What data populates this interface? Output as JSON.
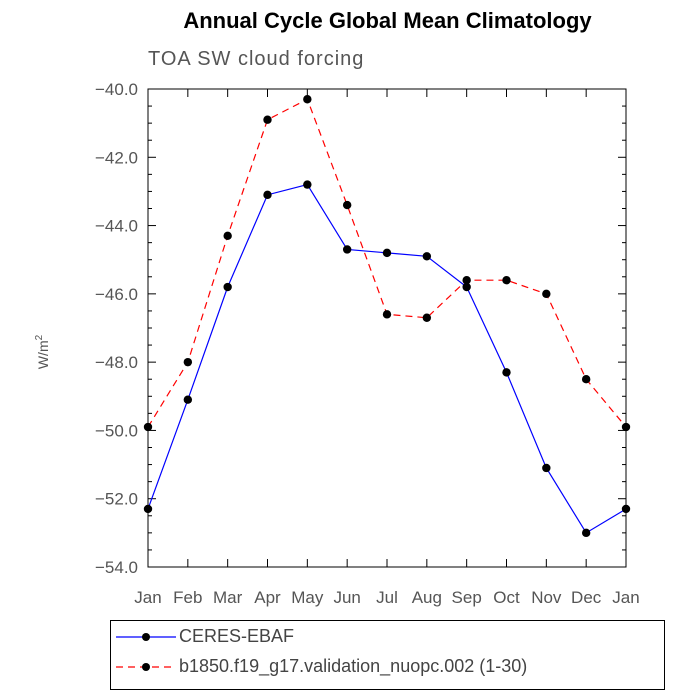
{
  "chart_data": {
    "type": "line",
    "title": "Annual Cycle Global Mean Climatology",
    "subtitle": "TOA SW cloud forcing",
    "ylabel": "W/m²",
    "ylabel_main": "W/m",
    "ylabel_sup": "2",
    "xlabel": "",
    "categories": [
      "Jan",
      "Feb",
      "Mar",
      "Apr",
      "May",
      "Jun",
      "Jul",
      "Aug",
      "Sep",
      "Oct",
      "Nov",
      "Dec",
      "Jan"
    ],
    "ylim": [
      -54.0,
      -40.0
    ],
    "yticks": [
      -54.0,
      -52.0,
      -50.0,
      -48.0,
      -46.0,
      -44.0,
      -42.0,
      -40.0
    ],
    "ytick_labels": [
      "−54.0",
      "−52.0",
      "−50.0",
      "−48.0",
      "−46.0",
      "−44.0",
      "−42.0",
      "−40.0"
    ],
    "series": [
      {
        "name": "CERES-EBAF",
        "color": "#0000ff",
        "dash": "solid",
        "values": [
          -52.3,
          -49.1,
          -45.8,
          -43.1,
          -42.8,
          -44.7,
          -44.8,
          -44.9,
          -45.8,
          -48.3,
          -51.1,
          -53.0,
          -52.3
        ]
      },
      {
        "name": "b1850.f19_g17.validation_nuopc.002 (1-30)",
        "color": "#ff0000",
        "dash": "dashed",
        "values": [
          -49.9,
          -48.0,
          -44.3,
          -40.9,
          -40.3,
          -43.4,
          -46.6,
          -46.7,
          -45.6,
          -45.6,
          -46.0,
          -48.5,
          -49.9
        ]
      }
    ]
  }
}
